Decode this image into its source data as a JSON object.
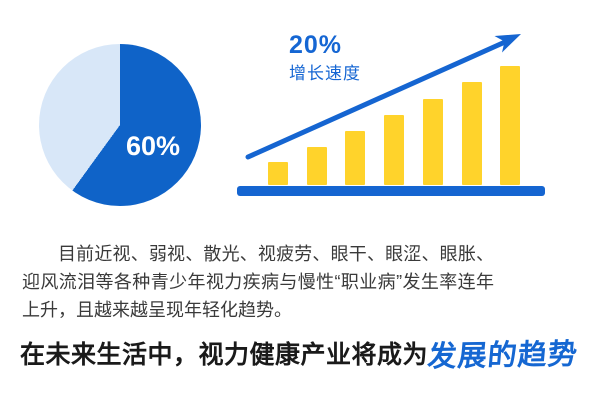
{
  "chart_data": [
    {
      "type": "pie",
      "title": "",
      "series": [
        {
          "name": "highlight-share",
          "value": 60
        },
        {
          "name": "remainder-share",
          "value": 40
        }
      ],
      "label": "60%",
      "label_color": "#ffffff",
      "colors": {
        "highlight": "#0F63C8",
        "remainder": "#D8E7F8"
      },
      "legend_position": "none",
      "start_angle_deg": 0,
      "direction": "clockwise"
    },
    {
      "type": "bar",
      "title": "",
      "categories": [
        "1",
        "2",
        "3",
        "4",
        "5",
        "6",
        "7"
      ],
      "values": [
        23,
        38,
        54,
        70,
        86,
        103,
        119
      ],
      "value_scale": "relative-height-px",
      "bar_color": "#FFD32B",
      "baseline_color": "#1565D1",
      "arrow_color": "#1565D1",
      "grid": false,
      "axes_labeled": false,
      "annotation": {
        "percent": "20%",
        "label": "增长速度",
        "color": "#1566D3"
      }
    }
  ],
  "paragraph": {
    "text": "目前近视、弱视、散光、视疲劳、眼干、眼涩、眼胀、迎风流泪等各种青少年视力疾病与慢性“职业病”发生率连年上升，且越来越呈现年轻化趋势。",
    "color": "#3A3A3A"
  },
  "headline": {
    "prefix": "在未来生活中，视力健康产业将成为",
    "highlight": "发展的趋势",
    "prefix_color": "#1A1A1A",
    "highlight_color": "#1567D2"
  }
}
